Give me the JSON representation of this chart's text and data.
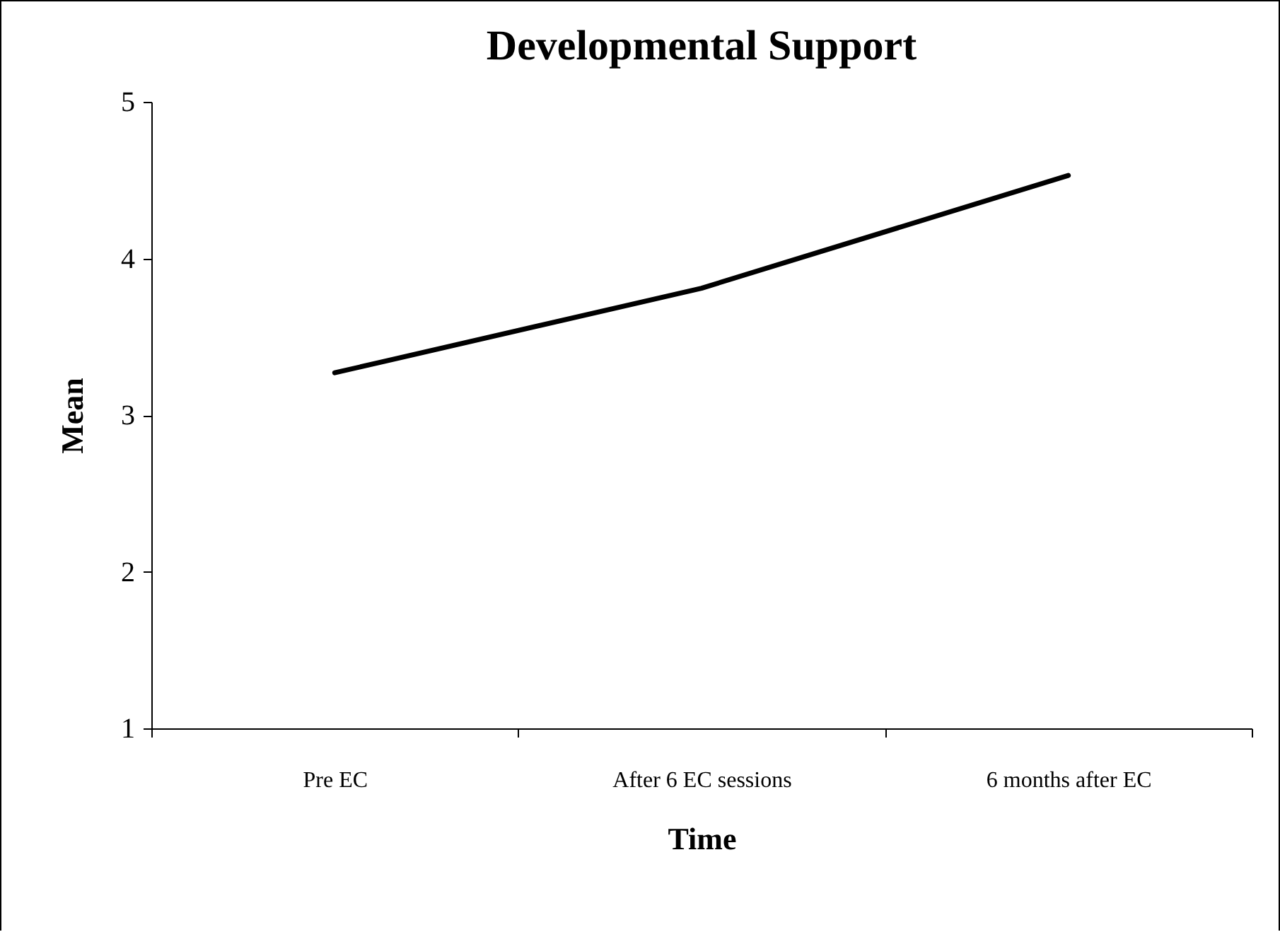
{
  "chart_data": {
    "type": "line",
    "title": "Developmental Support",
    "xlabel": "Time",
    "ylabel": "Mean",
    "categories": [
      "Pre EC",
      "After 6 EC sessions",
      "6 months after EC"
    ],
    "series": [
      {
        "color": "#000000",
        "values": [
          3.27,
          3.81,
          4.53
        ]
      }
    ],
    "ylim": [
      1,
      5
    ],
    "yticks": [
      1,
      2,
      3,
      4,
      5
    ],
    "grid": false,
    "legend": false,
    "marker": "none",
    "line_style": "solid"
  }
}
